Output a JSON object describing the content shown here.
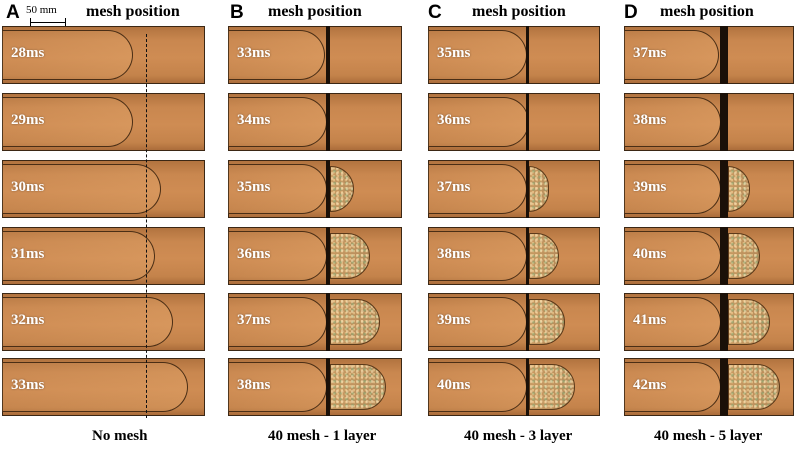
{
  "scale_label": "50 mm",
  "colors": {
    "mesh_marker": "#e81c1c",
    "frame": "#cf8c53",
    "mesh": "#1a1008"
  },
  "panels": [
    {
      "letter": "A",
      "title": "mesh position",
      "caption": "No mesh",
      "has_mesh": false,
      "frames": [
        {
          "time": "28ms"
        },
        {
          "time": "29ms"
        },
        {
          "time": "30ms"
        },
        {
          "time": "31ms"
        },
        {
          "time": "32ms"
        },
        {
          "time": "33ms"
        }
      ]
    },
    {
      "letter": "B",
      "title": "mesh position",
      "caption": "40 mesh - 1 layer",
      "has_mesh": true,
      "frames": [
        {
          "time": "33ms"
        },
        {
          "time": "34ms"
        },
        {
          "time": "35ms"
        },
        {
          "time": "36ms"
        },
        {
          "time": "37ms"
        },
        {
          "time": "38ms"
        }
      ]
    },
    {
      "letter": "C",
      "title": "mesh position",
      "caption": "40 mesh - 3 layer",
      "has_mesh": true,
      "frames": [
        {
          "time": "35ms"
        },
        {
          "time": "36ms"
        },
        {
          "time": "37ms"
        },
        {
          "time": "38ms"
        },
        {
          "time": "39ms"
        },
        {
          "time": "40ms"
        }
      ]
    },
    {
      "letter": "D",
      "title": "mesh position",
      "caption": "40 mesh - 5 layer",
      "has_mesh": true,
      "frames": [
        {
          "time": "37ms"
        },
        {
          "time": "38ms"
        },
        {
          "time": "39ms"
        },
        {
          "time": "40ms"
        },
        {
          "time": "41ms"
        },
        {
          "time": "42ms"
        }
      ]
    }
  ]
}
